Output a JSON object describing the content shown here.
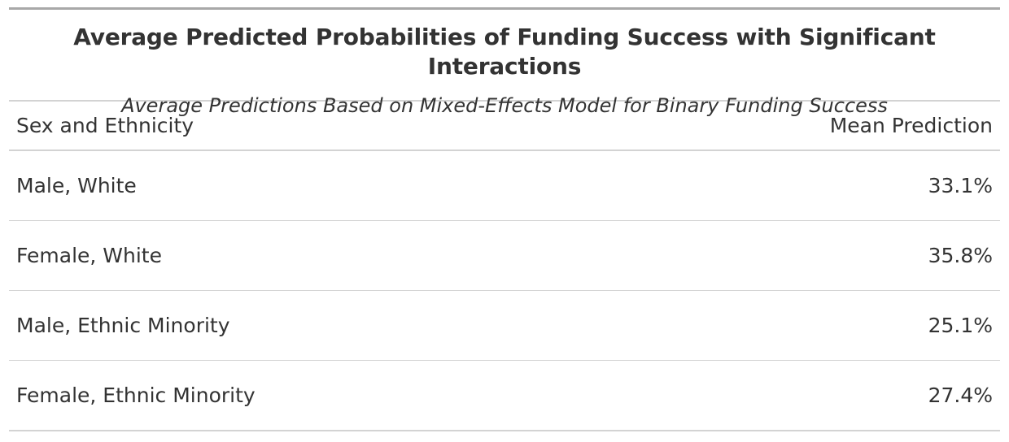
{
  "chart_data": {
    "type": "table",
    "title": "Average Predicted Probabilities of Funding Success with Significant Interactions",
    "subtitle": "Average Predictions Based on Mixed-Effects Model for Binary Funding Success",
    "columns": [
      "Sex and Ethnicity",
      "Mean Prediction"
    ],
    "rows": [
      {
        "group": "Male, White",
        "value": "33.1%"
      },
      {
        "group": "Female, White",
        "value": "35.8%"
      },
      {
        "group": "Male, Ethnic Minority",
        "value": "25.1%"
      },
      {
        "group": "Female, Ethnic Minority",
        "value": "27.4%"
      }
    ]
  }
}
